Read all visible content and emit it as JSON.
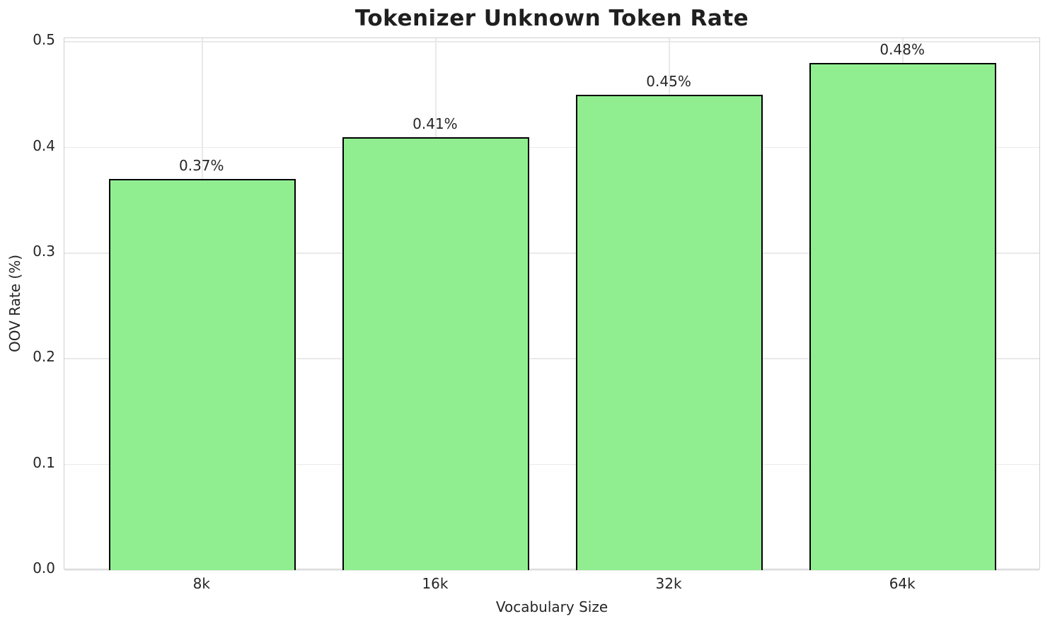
{
  "chart_data": {
    "type": "bar",
    "title": "Tokenizer Unknown Token Rate",
    "xlabel": "Vocabulary Size",
    "ylabel": "OOV Rate (%)",
    "categories": [
      "8k",
      "16k",
      "32k",
      "64k"
    ],
    "values": [
      0.37,
      0.41,
      0.45,
      0.48
    ],
    "bar_labels": [
      "0.37%",
      "0.41%",
      "0.45%",
      "0.48%"
    ],
    "yticks": [
      "0.0",
      "0.1",
      "0.2",
      "0.3",
      "0.4",
      "0.5"
    ],
    "ylim": [
      0,
      0.5
    ],
    "grid": "both",
    "legend_position": "none",
    "colors": {
      "bar_fill": "#90EE90",
      "bar_edge": "#000000",
      "gridline": "#e9e9e9",
      "spine": "#cfcfcf",
      "text": "#262626"
    }
  }
}
